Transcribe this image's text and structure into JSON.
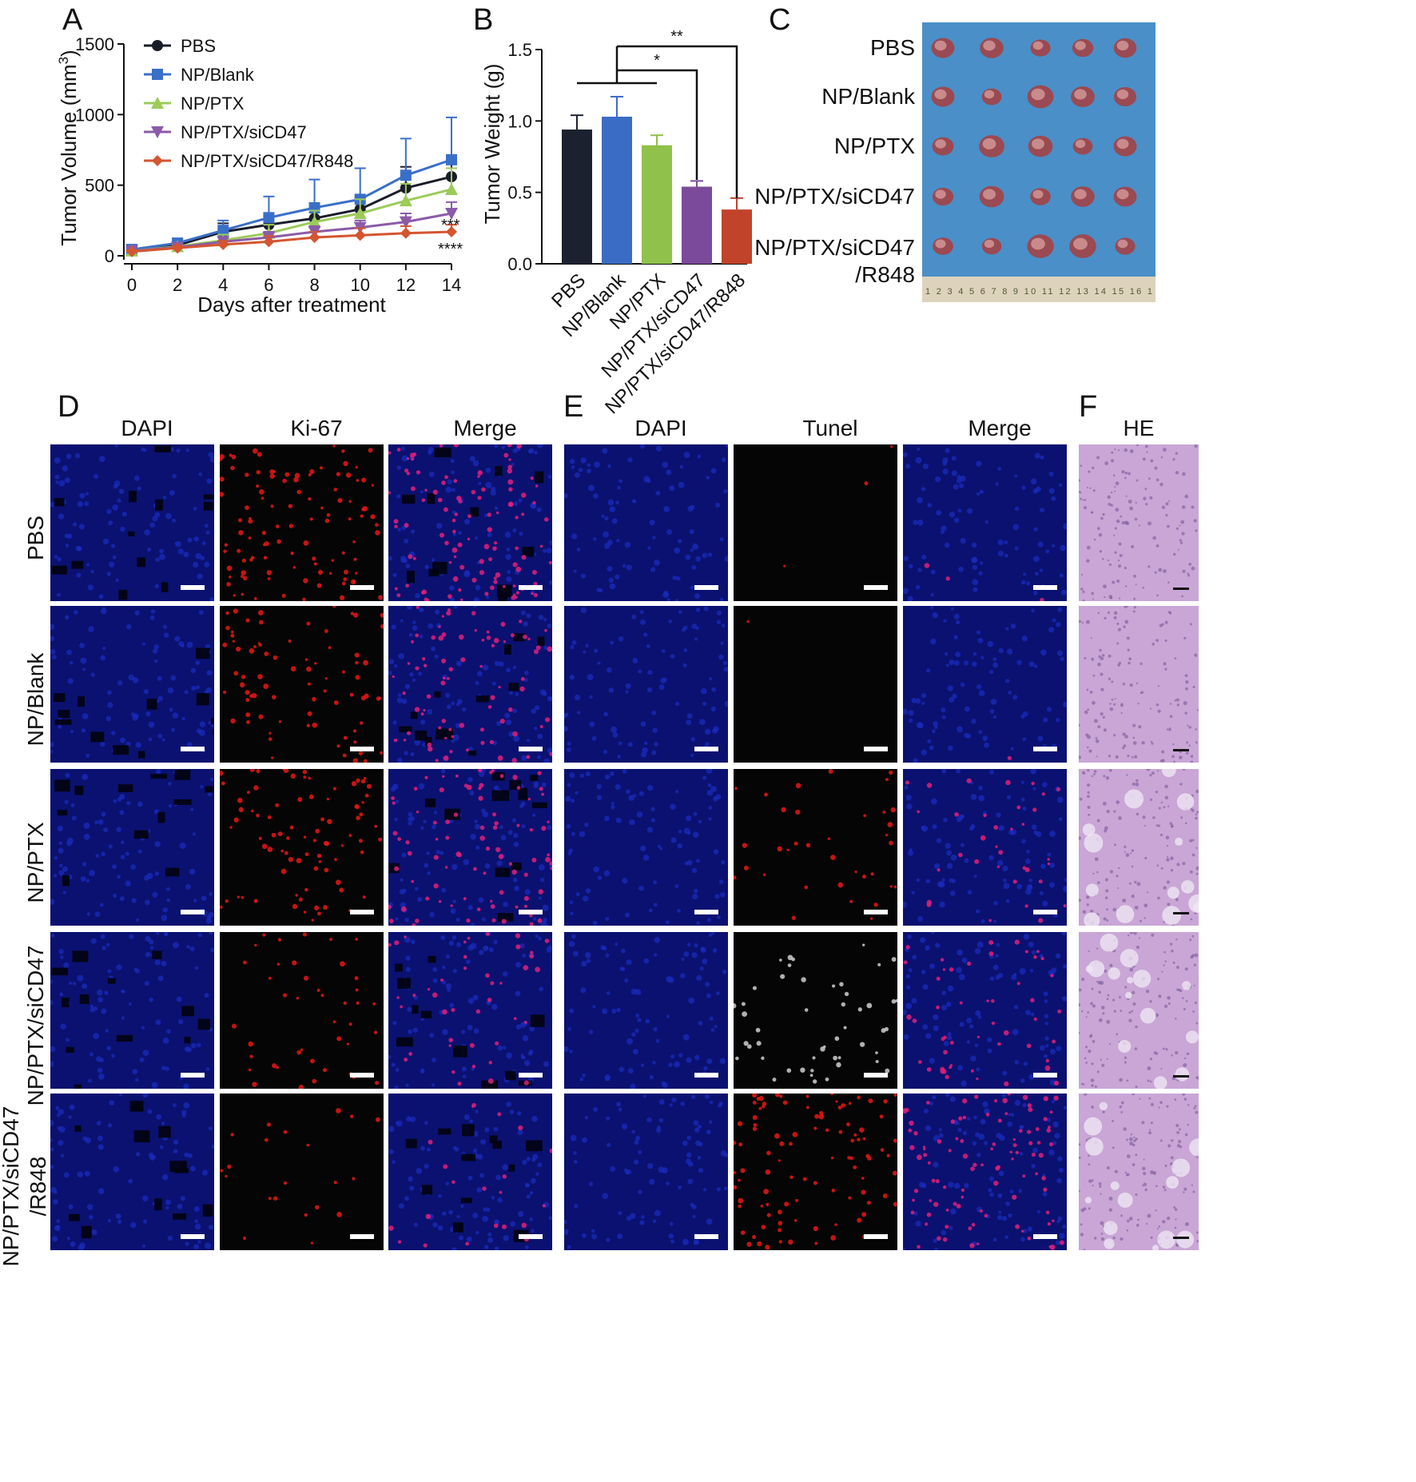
{
  "panels": {
    "A": "A",
    "B": "B",
    "C": "C",
    "D": "D",
    "E": "E",
    "F": "F"
  },
  "chart_data": [
    {
      "type": "line",
      "panel": "A",
      "xlabel": "Days after treatment",
      "ylabel": "Tumor Volume (mm",
      "ylabel_sup": "3",
      "ylabel_close": ")",
      "xlim": [
        0,
        14
      ],
      "ylim": [
        0,
        1500
      ],
      "x": [
        0,
        2,
        4,
        6,
        8,
        10,
        12,
        14
      ],
      "xticks": [
        "0",
        "2",
        "4",
        "6",
        "8",
        "10",
        "12",
        "14"
      ],
      "yticks": [
        "0",
        "500",
        "1000",
        "1500"
      ],
      "legend_position": "top-left",
      "series": [
        {
          "name": "PBS",
          "color": "#1a1d29",
          "marker": "circle",
          "values": [
            40,
            75,
            170,
            220,
            265,
            330,
            480,
            560
          ],
          "err": [
            10,
            20,
            60,
            60,
            60,
            80,
            150,
            100
          ]
        },
        {
          "name": "NP/Blank",
          "color": "#3a6fc8",
          "marker": "square",
          "values": [
            45,
            90,
            180,
            270,
            340,
            400,
            570,
            680
          ],
          "err": [
            10,
            30,
            70,
            150,
            200,
            220,
            260,
            300
          ]
        },
        {
          "name": "NP/PTX",
          "color": "#9ccb5a",
          "marker": "triangle-up",
          "values": [
            35,
            65,
            110,
            160,
            240,
            300,
            390,
            470
          ],
          "err": [
            8,
            20,
            40,
            60,
            80,
            100,
            120,
            150
          ]
        },
        {
          "name": "NP/PTX/siCD47",
          "color": "#8b5ba8",
          "marker": "triangle-down",
          "values": [
            35,
            60,
            100,
            130,
            170,
            200,
            240,
            300
          ],
          "err": [
            8,
            15,
            30,
            40,
            40,
            50,
            60,
            80
          ]
        },
        {
          "name": "NP/PTX/siCD47/R848",
          "color": "#d4552f",
          "marker": "diamond",
          "values": [
            30,
            55,
            80,
            100,
            130,
            145,
            160,
            170
          ],
          "err": [
            8,
            15,
            25,
            40,
            40,
            50,
            50,
            50
          ]
        }
      ],
      "annotations": [
        "***",
        "****"
      ]
    },
    {
      "type": "bar",
      "panel": "B",
      "ylabel": "Tumor Weight (g)",
      "ylim": [
        0,
        1.5
      ],
      "yticks": [
        "0.0",
        "0.5",
        "1.0",
        "1.5"
      ],
      "categories": [
        "PBS",
        "NP/Blank",
        "NP/PTX",
        "NP/PTX/siCD47",
        "NP/PTX/siCD47/R848"
      ],
      "values": [
        0.94,
        1.03,
        0.83,
        0.54,
        0.38
      ],
      "err": [
        0.1,
        0.14,
        0.07,
        0.04,
        0.08
      ],
      "colors": [
        "#1c2130",
        "#3b6cc5",
        "#8fc14b",
        "#7b4a9b",
        "#c0432a"
      ],
      "significance": [
        {
          "label": "*",
          "from": 1,
          "to": 3
        },
        {
          "label": "**",
          "from": 1,
          "to": 4
        }
      ]
    }
  ],
  "panelC": {
    "rows": [
      "PBS",
      "NP/Blank",
      "NP/PTX",
      "NP/PTX/siCD47",
      "NP/PTX/siCD47"
    ],
    "row5_line2": "/R848",
    "ruler": "1 2 3 4 5 6 7 8 9 10 11 12 13 14 15 16 1"
  },
  "panelD": {
    "columns": [
      "DAPI",
      "Ki-67",
      "Merge"
    ]
  },
  "panelE": {
    "columns": [
      "DAPI",
      "Tunel",
      "Merge"
    ]
  },
  "panelF": {
    "columns": [
      "HE"
    ]
  },
  "micro_rows": [
    "PBS",
    "NP/Blank",
    "NP/PTX",
    "NP/PTX/siCD47",
    "NP/PTX/siCD47"
  ],
  "micro_row5_line2": "/R848",
  "colors": {
    "dapi": "#0a1488",
    "red": "#e81818",
    "he": "#c9a6d6",
    "tray": "#4a8fc8"
  }
}
